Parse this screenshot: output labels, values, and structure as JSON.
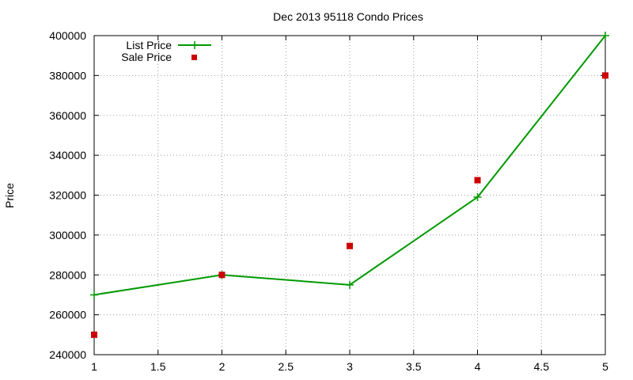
{
  "chart_data": {
    "type": "line",
    "title": "Dec 2013 95118 Condo Prices",
    "xlabel": "",
    "ylabel": "Price",
    "xlim": [
      1,
      5
    ],
    "ylim": [
      240000,
      400000
    ],
    "x_ticks": [
      "1",
      "1.5",
      "2",
      "2.5",
      "3",
      "3.5",
      "4",
      "4.5",
      "5"
    ],
    "y_ticks": [
      "240000",
      "260000",
      "280000",
      "300000",
      "320000",
      "340000",
      "360000",
      "380000",
      "400000"
    ],
    "grid": true,
    "legend_position": "top-left",
    "series": [
      {
        "name": "List Price",
        "style": "line+cross",
        "color": "#009900",
        "x": [
          1,
          2,
          3,
          4,
          5
        ],
        "y": [
          270000,
          280000,
          275000,
          319000,
          400000
        ]
      },
      {
        "name": "Sale Price",
        "style": "square-points",
        "color": "#cc0000",
        "x": [
          1,
          2,
          3,
          4,
          5
        ],
        "y": [
          250000,
          280000,
          294500,
          327500,
          380000
        ]
      }
    ]
  }
}
